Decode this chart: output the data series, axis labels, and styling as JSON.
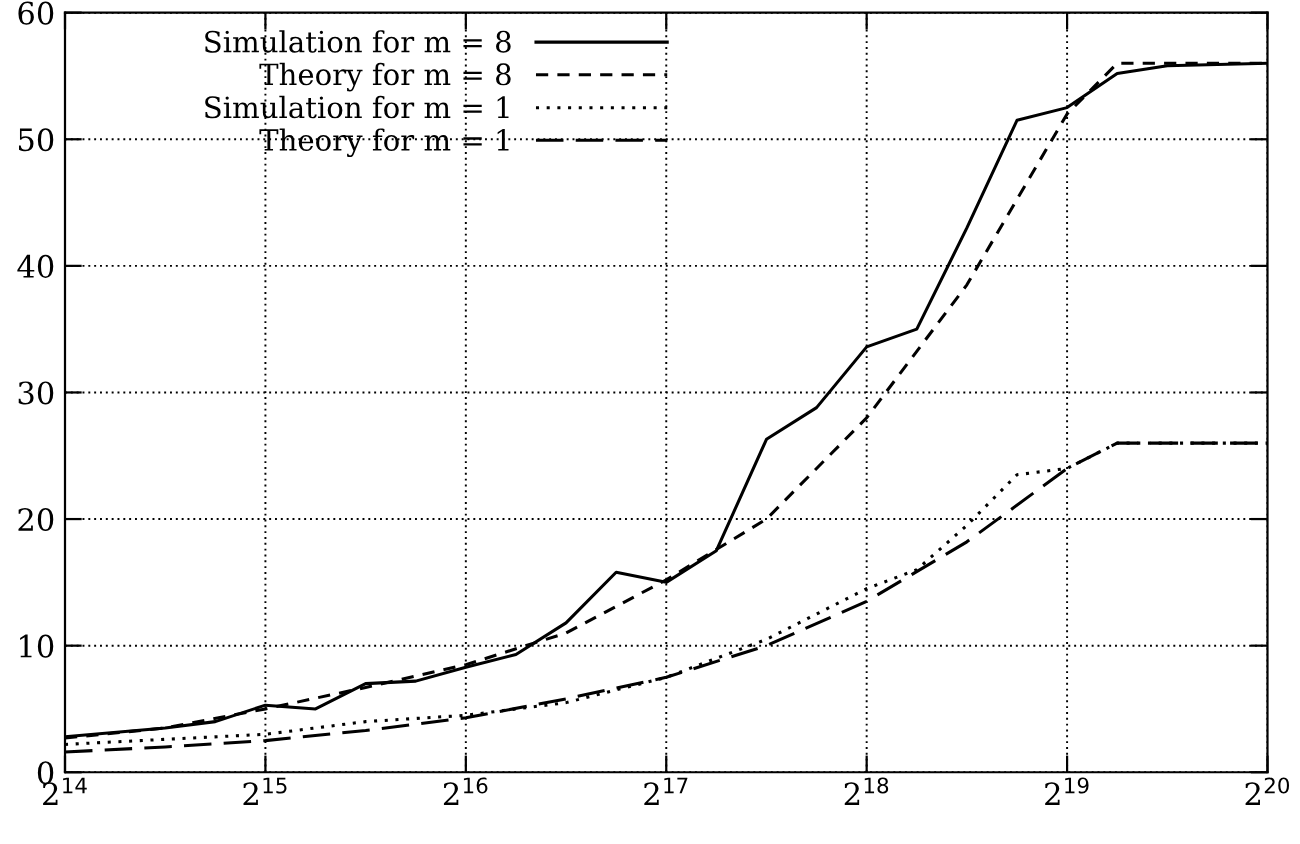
{
  "chart_data": {
    "type": "line",
    "log": "x",
    "grid": true,
    "legend": "top left",
    "xlim": [
      16384,
      1048576
    ],
    "xticks": [
      {
        "value": 16384,
        "label": "2$^{14}$"
      },
      {
        "value": 32768,
        "label": "2$^{15}$"
      },
      {
        "value": 65536,
        "label": "2$^{16}$"
      },
      {
        "value": 131072,
        "label": "2$^{17}$"
      },
      {
        "value": 262144,
        "label": "2$^{18}$"
      },
      {
        "value": 524288,
        "label": "2$^{19}$"
      },
      {
        "value": 1048576,
        "label": "2$^{20}$"
      }
    ],
    "ylim": [
      0,
      60
    ],
    "yticks": [
      0,
      10,
      20,
      30,
      40,
      50,
      60
    ],
    "series": [
      {
        "name": "Simulation for m = 8",
        "color": "#000000",
        "line_style": "solid",
        "x": [
          16384,
          23170,
          27554,
          32768,
          38968,
          46341,
          55109,
          65536,
          77936,
          92682,
          110218,
          131072,
          155872,
          185364,
          220436,
          262144,
          311744,
          370728,
          440872,
          524288,
          623487,
          741455,
          1048576
        ],
        "values": [
          2.8,
          3.5,
          4,
          5.3,
          5,
          7,
          7.2,
          8.3,
          9.3,
          11.8,
          15.8,
          15,
          17.5,
          26.3,
          28.8,
          33.6,
          35,
          43,
          51.5,
          52.5,
          55.2,
          55.8,
          56
        ]
      },
      {
        "name": "Theory for m = 8",
        "color": "#000000",
        "line_style": "dashed",
        "x": [
          16384,
          23170,
          32768,
          46341,
          65536,
          92682,
          131072,
          185364,
          262144,
          370728,
          524288,
          623487,
          741455,
          1048576
        ],
        "values": [
          2.7,
          3.5,
          5,
          6.7,
          8.5,
          11,
          15.2,
          20,
          28,
          38.5,
          52,
          56,
          56,
          56
        ]
      },
      {
        "name": "Simulation for m = 1",
        "color": "#000000",
        "line_style": "dotted",
        "x": [
          16384,
          23170,
          32768,
          46341,
          65536,
          92682,
          131072,
          185364,
          262144,
          311744,
          370728,
          440872,
          524288,
          623487,
          1048576
        ],
        "values": [
          2.2,
          2.6,
          3,
          4,
          4.5,
          5.5,
          7.5,
          10.5,
          14.5,
          16,
          19.5,
          23.5,
          24,
          26,
          26
        ]
      },
      {
        "name": "Theory for m = 1",
        "color": "#000000",
        "line_style": "dashed",
        "x": [
          16384,
          23170,
          32768,
          46341,
          65536,
          92682,
          131072,
          185364,
          262144,
          370728,
          524288,
          623487,
          1048576
        ],
        "values": [
          1.6,
          2,
          2.5,
          3.3,
          4.3,
          5.8,
          7.5,
          10,
          13.5,
          18.2,
          24,
          26,
          26
        ]
      }
    ]
  }
}
